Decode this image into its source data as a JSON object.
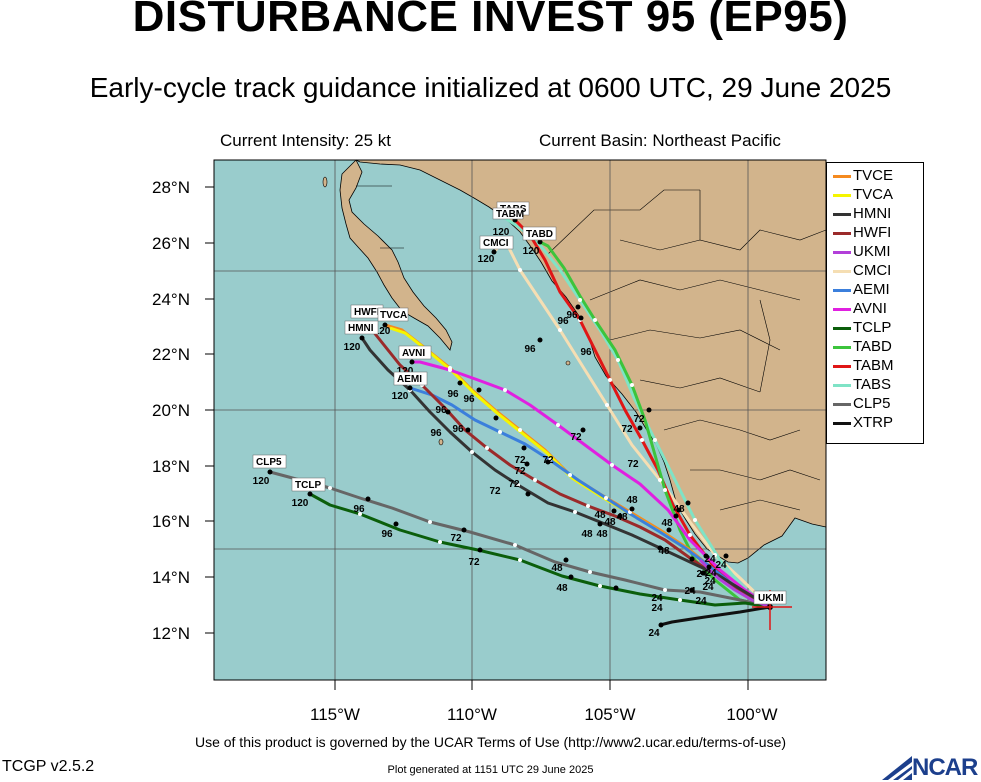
{
  "header": {
    "title": "DISTURBANCE INVEST 95 (EP95)",
    "subtitle": "Early-cycle track guidance initialized at 0600 UTC, 29 June 2025",
    "intensity": "Current Intensity: 25 kt",
    "basin": "Current Basin: Northeast Pacific"
  },
  "axes": {
    "lat_labels": [
      "28°N",
      "26°N",
      "24°N",
      "22°N",
      "20°N",
      "18°N",
      "16°N",
      "14°N",
      "12°N"
    ],
    "lon_labels": [
      "115°W",
      "110°W",
      "105°W",
      "100°W"
    ]
  },
  "legend": [
    {
      "name": "TVCE",
      "color": "#f58a1f"
    },
    {
      "name": "TVCA",
      "color": "#f5f500"
    },
    {
      "name": "HMNI",
      "color": "#333333"
    },
    {
      "name": "HWFI",
      "color": "#9b2a2a"
    },
    {
      "name": "UKMI",
      "color": "#b23fd9"
    },
    {
      "name": "CMCI",
      "color": "#f5deb3"
    },
    {
      "name": "AEMI",
      "color": "#3b7fdc"
    },
    {
      "name": "AVNI",
      "color": "#e020e0"
    },
    {
      "name": "TCLP",
      "color": "#0b5e0b"
    },
    {
      "name": "TABD",
      "color": "#3cc43c"
    },
    {
      "name": "TABM",
      "color": "#e01616"
    },
    {
      "name": "TABS",
      "color": "#7fe3c6"
    },
    {
      "name": "CLP5",
      "color": "#666666"
    },
    {
      "name": "XTRP",
      "color": "#111111"
    }
  ],
  "map_labels": {
    "ukmi": "UKMI",
    "tabs": "TABS",
    "tabm": "TABM",
    "tabd": "TABD",
    "cmci": "CMCI",
    "hwfi": "HWFI",
    "tvca": "TVCA",
    "hmni": "HMNI",
    "avni": "AVNI",
    "aemi": "AEMI",
    "clp5": "CLP5",
    "tclp": "TCLP"
  },
  "hour_labels": {
    "h120": "120",
    "h96": "96",
    "h72": "72",
    "h48": "48",
    "h24": "24"
  },
  "footer": {
    "terms": "Use of this product is governed by the UCAR Terms of Use (http://www2.ucar.edu/terms-of-use)",
    "version": "TCGP v2.5.2",
    "generated": "Plot generated at 1151 UTC   29 June 2025",
    "logo": "NCAR"
  }
}
